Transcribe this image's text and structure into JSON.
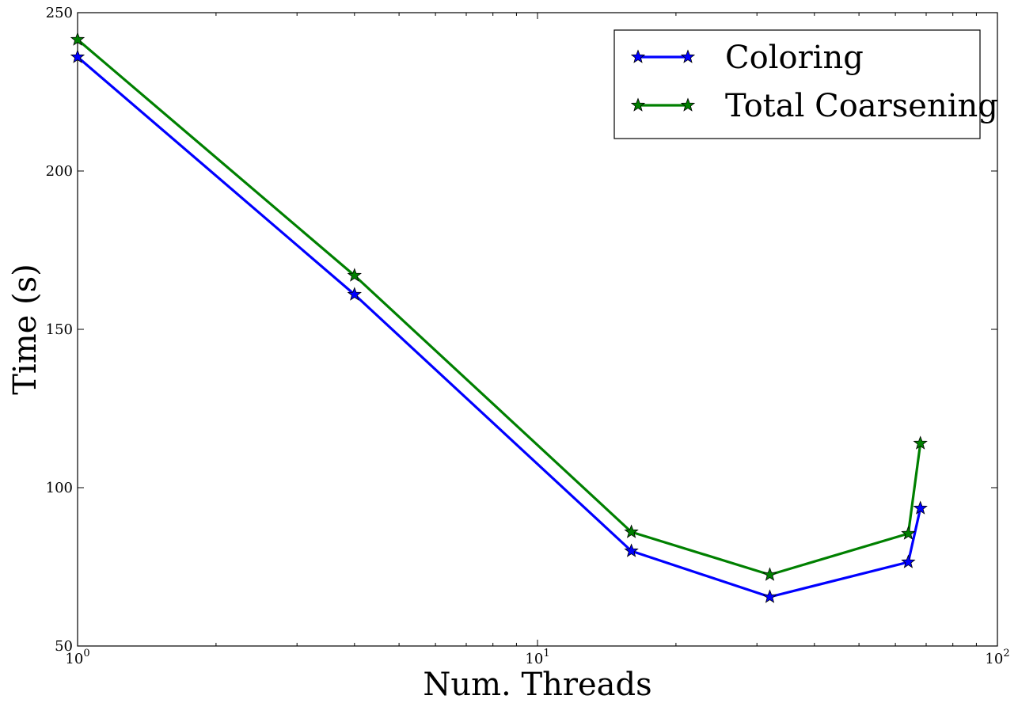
{
  "chart_data": {
    "type": "line",
    "title": "",
    "xlabel": "Num. Threads",
    "ylabel": "Time (s)",
    "x_scale": "log",
    "xlim": [
      1,
      100
    ],
    "ylim": [
      50,
      250
    ],
    "x_ticks": [
      {
        "value": 1,
        "base": "10",
        "exp": "0"
      },
      {
        "value": 10,
        "base": "10",
        "exp": "1"
      },
      {
        "value": 100,
        "base": "10",
        "exp": "2"
      }
    ],
    "y_ticks": [
      50,
      100,
      150,
      200,
      250
    ],
    "grid": false,
    "legend_position": "top-right",
    "series": [
      {
        "name": "Coloring",
        "color": "#0000ff",
        "marker": "star",
        "x": [
          1,
          4,
          16,
          32,
          64,
          68
        ],
        "y": [
          236,
          161,
          80,
          65.5,
          76.5,
          93.5
        ]
      },
      {
        "name": "Total Coarsening",
        "color": "#008000",
        "marker": "star",
        "x": [
          1,
          4,
          16,
          32,
          64,
          68
        ],
        "y": [
          241.5,
          167,
          86,
          72.5,
          85.5,
          114
        ]
      }
    ]
  }
}
